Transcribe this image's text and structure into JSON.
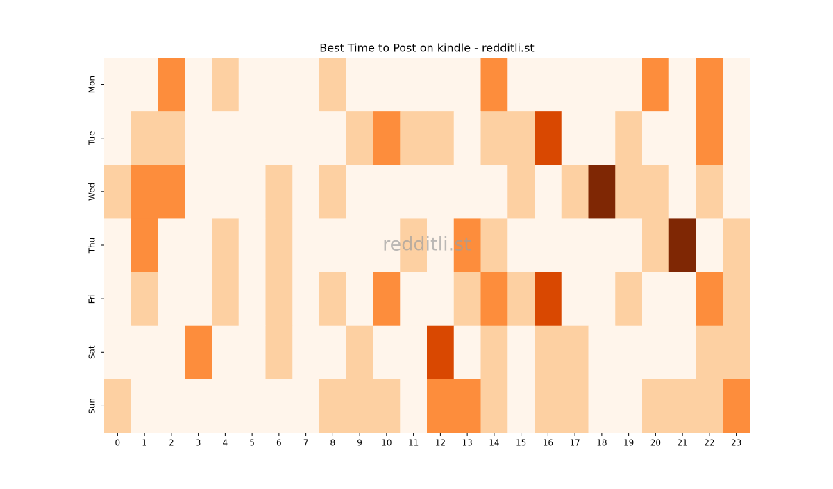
{
  "chart_data": {
    "type": "heatmap",
    "title": "Best Time to Post on kindle - redditli.st",
    "watermark": "redditli.st",
    "x_categories": [
      "0",
      "1",
      "2",
      "3",
      "4",
      "5",
      "6",
      "7",
      "8",
      "9",
      "10",
      "11",
      "12",
      "13",
      "14",
      "15",
      "16",
      "17",
      "18",
      "19",
      "20",
      "21",
      "22",
      "23"
    ],
    "y_categories": [
      "Mon",
      "Tue",
      "Wed",
      "Thu",
      "Fri",
      "Sat",
      "Sun"
    ],
    "values": [
      [
        0,
        0,
        2,
        0,
        1,
        0,
        0,
        0,
        1,
        0,
        0,
        0,
        0,
        0,
        2,
        0,
        0,
        0,
        0,
        0,
        2,
        0,
        2,
        0
      ],
      [
        0,
        1,
        1,
        0,
        0,
        0,
        0,
        0,
        0,
        1,
        2,
        1,
        1,
        0,
        1,
        1,
        3,
        0,
        0,
        1,
        0,
        0,
        2,
        0
      ],
      [
        1,
        2,
        2,
        0,
        0,
        0,
        1,
        0,
        1,
        0,
        0,
        0,
        0,
        0,
        0,
        1,
        0,
        1,
        4,
        1,
        1,
        0,
        1,
        0
      ],
      [
        0,
        2,
        0,
        0,
        1,
        0,
        1,
        0,
        0,
        0,
        0,
        1,
        0,
        2,
        1,
        0,
        0,
        0,
        0,
        0,
        1,
        4,
        0,
        1
      ],
      [
        0,
        1,
        0,
        0,
        1,
        0,
        1,
        0,
        1,
        0,
        2,
        0,
        0,
        1,
        2,
        1,
        3,
        0,
        0,
        1,
        0,
        0,
        2,
        1
      ],
      [
        0,
        0,
        0,
        2,
        0,
        0,
        1,
        0,
        0,
        1,
        0,
        0,
        3,
        0,
        1,
        0,
        1,
        1,
        0,
        0,
        0,
        0,
        1,
        1
      ],
      [
        1,
        0,
        0,
        0,
        0,
        0,
        0,
        0,
        1,
        1,
        1,
        0,
        2,
        2,
        1,
        0,
        1,
        1,
        0,
        0,
        1,
        1,
        1,
        2
      ]
    ],
    "color_scale": {
      "min": 0,
      "max": 4,
      "colors": [
        "#fff5eb",
        "#fdd0a2",
        "#fd8d3c",
        "#d94801",
        "#7f2704"
      ]
    }
  }
}
